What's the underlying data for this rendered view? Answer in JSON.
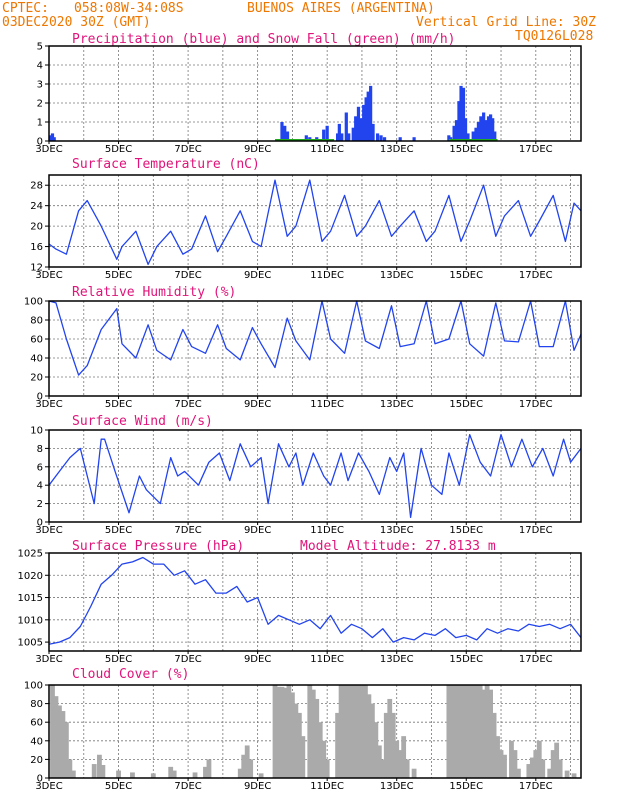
{
  "header": {
    "source": "CPTEC:",
    "coords": "058:08W-34:08S",
    "place": "BUENOS AIRES (ARGENTINA)",
    "run": "03DEC2020 30Z (GMT)",
    "grid_note": "Vertical Grid Line: 30Z",
    "code": "TQ0126L028"
  },
  "colors": {
    "header": "#ee7700",
    "title": "#e0147a",
    "line": "#2244ee",
    "snow": "#22aa22",
    "cloud": "#aaaaaa"
  },
  "chart_data": [
    {
      "type": "bar",
      "title": "Precipitation (blue) and Snow Fall (green) (mm/h)",
      "ylim": [
        0,
        5
      ],
      "yticks": [
        "0",
        "1",
        "2",
        "3",
        "4",
        "5"
      ],
      "xticks": [
        "3DEC",
        "5DEC",
        "7DEC",
        "9DEC",
        "11DEC",
        "13DEC",
        "15DEC",
        "17DEC"
      ],
      "xlim": [
        0,
        15.3
      ],
      "grid": true,
      "series": [
        {
          "name": "precipitation",
          "points": [
            [
              0.05,
              0.3
            ],
            [
              0.1,
              0.4
            ],
            [
              0.15,
              0.2
            ],
            [
              6.7,
              1.0
            ],
            [
              6.78,
              0.8
            ],
            [
              6.86,
              0.5
            ],
            [
              7.4,
              0.3
            ],
            [
              7.5,
              0.2
            ],
            [
              7.7,
              0.2
            ],
            [
              7.9,
              0.6
            ],
            [
              8.0,
              0.8
            ],
            [
              8.3,
              0.4
            ],
            [
              8.35,
              0.9
            ],
            [
              8.42,
              0.4
            ],
            [
              8.55,
              1.5
            ],
            [
              8.62,
              0.4
            ],
            [
              8.75,
              0.7
            ],
            [
              8.82,
              1.3
            ],
            [
              8.9,
              1.8
            ],
            [
              8.97,
              1.2
            ],
            [
              9.05,
              1.9
            ],
            [
              9.12,
              2.3
            ],
            [
              9.18,
              2.6
            ],
            [
              9.25,
              2.9
            ],
            [
              9.32,
              0.9
            ],
            [
              9.45,
              0.4
            ],
            [
              9.55,
              0.3
            ],
            [
              9.65,
              0.2
            ],
            [
              10.1,
              0.2
            ],
            [
              10.5,
              0.2
            ],
            [
              11.5,
              0.3
            ],
            [
              11.55,
              0.2
            ],
            [
              11.65,
              0.8
            ],
            [
              11.72,
              1.1
            ],
            [
              11.79,
              2.1
            ],
            [
              11.85,
              2.9
            ],
            [
              11.92,
              2.8
            ],
            [
              11.98,
              1.2
            ],
            [
              12.05,
              0.4
            ],
            [
              12.2,
              0.5
            ],
            [
              12.28,
              0.7
            ],
            [
              12.35,
              1.0
            ],
            [
              12.42,
              1.3
            ],
            [
              12.5,
              1.5
            ],
            [
              12.58,
              1.1
            ],
            [
              12.64,
              1.3
            ],
            [
              12.7,
              1.4
            ],
            [
              12.76,
              1.2
            ],
            [
              12.82,
              0.5
            ]
          ]
        },
        {
          "name": "snow fall",
          "points": []
        }
      ]
    },
    {
      "type": "line",
      "title": "Surface Temperature (nC)",
      "ylim": [
        12,
        30
      ],
      "yticks": [
        "12",
        "16",
        "20",
        "24",
        "28"
      ],
      "xticks": [
        "3DEC",
        "5DEC",
        "7DEC",
        "9DEC",
        "11DEC",
        "13DEC",
        "15DEC",
        "17DEC"
      ],
      "xlim": [
        0,
        15.3
      ],
      "grid": true,
      "x": [
        0,
        0.2,
        0.5,
        0.85,
        1.1,
        1.5,
        1.95,
        2.1,
        2.5,
        2.85,
        3.1,
        3.5,
        3.85,
        4.1,
        4.5,
        4.85,
        5.1,
        5.5,
        5.85,
        6.1,
        6.5,
        6.85,
        7.1,
        7.5,
        7.85,
        8.1,
        8.5,
        8.85,
        9.1,
        9.5,
        9.85,
        10.1,
        10.5,
        10.85,
        11.1,
        11.5,
        11.85,
        12.1,
        12.5,
        12.85,
        13.1,
        13.5,
        13.85,
        14.1,
        14.5,
        14.85,
        15.1,
        15.3
      ],
      "y": [
        16.5,
        15.5,
        14.5,
        23,
        25,
        20,
        13.5,
        16,
        19,
        12.5,
        16,
        19,
        14.5,
        15.5,
        22,
        15,
        18,
        23,
        17,
        16,
        29,
        18,
        20,
        29,
        17,
        19,
        26,
        18,
        20,
        25,
        18,
        20,
        23,
        17,
        19,
        26,
        17,
        21,
        28,
        18,
        22,
        25,
        18,
        21,
        26,
        17,
        24.5,
        23
      ]
    },
    {
      "type": "line",
      "title": "Relative Humidity (%)",
      "ylim": [
        0,
        100
      ],
      "yticks": [
        "0",
        "20",
        "40",
        "60",
        "80",
        "100"
      ],
      "xticks": [
        "3DEC",
        "5DEC",
        "7DEC",
        "9DEC",
        "11DEC",
        "13DEC",
        "15DEC",
        "17DEC"
      ],
      "xlim": [
        0,
        15.3
      ],
      "grid": true,
      "x": [
        0,
        0.2,
        0.5,
        0.85,
        1.1,
        1.5,
        1.95,
        2.1,
        2.5,
        2.85,
        3.1,
        3.5,
        3.85,
        4.1,
        4.5,
        4.85,
        5.1,
        5.5,
        5.85,
        6.1,
        6.5,
        6.85,
        7.1,
        7.5,
        7.85,
        8.1,
        8.5,
        8.85,
        9.1,
        9.5,
        9.85,
        10.1,
        10.5,
        10.85,
        11.1,
        11.5,
        11.85,
        12.1,
        12.5,
        12.85,
        13.1,
        13.5,
        13.85,
        14.1,
        14.5,
        14.85,
        15.1,
        15.3
      ],
      "y": [
        100,
        98,
        60,
        22,
        32,
        70,
        92,
        55,
        40,
        75,
        48,
        38,
        70,
        52,
        45,
        75,
        50,
        38,
        72,
        55,
        30,
        82,
        58,
        38,
        100,
        60,
        45,
        100,
        58,
        50,
        95,
        52,
        55,
        100,
        55,
        60,
        100,
        55,
        42,
        98,
        58,
        57,
        100,
        52,
        52,
        100,
        48,
        65
      ]
    },
    {
      "type": "line",
      "title": "Surface Wind (m/s)",
      "ylim": [
        0,
        10
      ],
      "yticks": [
        "0",
        "2",
        "4",
        "6",
        "8",
        "10"
      ],
      "xticks": [
        "3DEC",
        "5DEC",
        "7DEC",
        "9DEC",
        "11DEC",
        "13DEC",
        "15DEC",
        "17DEC"
      ],
      "xlim": [
        0,
        15.3
      ],
      "grid": true,
      "x": [
        0,
        0.3,
        0.6,
        0.9,
        1.3,
        1.5,
        1.6,
        1.9,
        2.3,
        2.6,
        2.8,
        3.2,
        3.5,
        3.7,
        3.9,
        4.3,
        4.6,
        4.9,
        5.2,
        5.5,
        5.8,
        6.1,
        6.3,
        6.6,
        6.9,
        7.1,
        7.3,
        7.6,
        7.9,
        8.1,
        8.4,
        8.6,
        8.9,
        9.2,
        9.5,
        9.8,
        10.0,
        10.2,
        10.4,
        10.7,
        11.0,
        11.3,
        11.5,
        11.8,
        12.1,
        12.4,
        12.7,
        13.0,
        13.3,
        13.6,
        13.9,
        14.2,
        14.5,
        14.8,
        15.0,
        15.3
      ],
      "y": [
        4,
        5.5,
        7,
        8,
        2,
        9,
        9,
        5.5,
        1,
        5,
        3.5,
        2,
        7,
        5,
        5.5,
        4,
        6.5,
        7.5,
        4.5,
        8.5,
        6,
        7,
        2,
        8.5,
        6,
        7.5,
        4,
        7.5,
        5,
        4,
        7.5,
        4.5,
        7.5,
        5.5,
        3,
        7,
        5.5,
        7.5,
        0.5,
        8,
        4,
        3,
        7.5,
        4,
        9.5,
        6.5,
        5,
        9.5,
        6,
        9,
        6,
        8,
        5,
        9,
        6.5,
        8
      ]
    },
    {
      "type": "line",
      "title": "Surface Pressure (hPa)",
      "ylim": [
        1003,
        1025
      ],
      "yticks": [
        "1005",
        "1010",
        "1015",
        "1020",
        "1025"
      ],
      "xticks": [
        "3DEC",
        "5DEC",
        "7DEC",
        "9DEC",
        "11DEC",
        "13DEC",
        "15DEC",
        "17DEC"
      ],
      "xlim": [
        0,
        15.3
      ],
      "grid": true,
      "annotation": "Model Altitude: 27.8133 m",
      "x": [
        0,
        0.3,
        0.6,
        0.9,
        1.2,
        1.5,
        1.8,
        2.1,
        2.4,
        2.7,
        3.0,
        3.3,
        3.6,
        3.9,
        4.2,
        4.5,
        4.8,
        5.1,
        5.4,
        5.7,
        6.0,
        6.3,
        6.6,
        6.9,
        7.2,
        7.5,
        7.8,
        8.1,
        8.4,
        8.7,
        9.0,
        9.3,
        9.6,
        9.9,
        10.2,
        10.5,
        10.8,
        11.1,
        11.4,
        11.7,
        12.0,
        12.3,
        12.6,
        12.9,
        13.2,
        13.5,
        13.8,
        14.1,
        14.4,
        14.7,
        15.0,
        15.3
      ],
      "y": [
        1004.5,
        1005,
        1006,
        1008.5,
        1013,
        1018,
        1020,
        1022.5,
        1023,
        1024,
        1022.5,
        1022.5,
        1020,
        1021,
        1018,
        1019,
        1016,
        1016,
        1017.5,
        1014,
        1015,
        1009,
        1011,
        1010,
        1009,
        1010,
        1008,
        1011,
        1007,
        1009,
        1008,
        1006,
        1008,
        1005,
        1006,
        1005.5,
        1007,
        1006.5,
        1008,
        1006,
        1006.5,
        1005.5,
        1008,
        1007,
        1008,
        1007.5,
        1009,
        1008.5,
        1009,
        1008,
        1009,
        1006
      ]
    },
    {
      "type": "bar",
      "title": "Cloud Cover (%)",
      "ylim": [
        0,
        100
      ],
      "yticks": [
        "0",
        "20",
        "40",
        "60",
        "80",
        "100"
      ],
      "xticks": [
        "3DEC",
        "5DEC",
        "7DEC",
        "9DEC",
        "11DEC",
        "13DEC",
        "15DEC",
        "17DEC"
      ],
      "xlim": [
        0,
        15.3
      ],
      "grid": true,
      "points": [
        [
          0.1,
          100
        ],
        [
          0.2,
          88
        ],
        [
          0.3,
          78
        ],
        [
          0.4,
          72
        ],
        [
          0.5,
          60
        ],
        [
          0.6,
          20
        ],
        [
          0.7,
          8
        ],
        [
          1.3,
          15
        ],
        [
          1.45,
          25
        ],
        [
          1.55,
          14
        ],
        [
          2.0,
          8
        ],
        [
          2.4,
          6
        ],
        [
          3.0,
          5
        ],
        [
          3.5,
          12
        ],
        [
          3.6,
          8
        ],
        [
          4.2,
          6
        ],
        [
          4.5,
          12
        ],
        [
          4.6,
          20
        ],
        [
          5.5,
          10
        ],
        [
          5.6,
          25
        ],
        [
          5.7,
          35
        ],
        [
          5.8,
          20
        ],
        [
          6.1,
          5
        ],
        [
          6.5,
          100
        ],
        [
          6.6,
          98
        ],
        [
          6.7,
          98
        ],
        [
          6.8,
          97
        ],
        [
          6.9,
          100
        ],
        [
          7.0,
          92
        ],
        [
          7.1,
          80
        ],
        [
          7.2,
          70
        ],
        [
          7.3,
          45
        ],
        [
          7.5,
          100
        ],
        [
          7.6,
          95
        ],
        [
          7.7,
          85
        ],
        [
          7.8,
          60
        ],
        [
          7.9,
          40
        ],
        [
          8.0,
          20
        ],
        [
          8.3,
          70
        ],
        [
          8.4,
          100
        ],
        [
          8.5,
          100
        ],
        [
          8.6,
          100
        ],
        [
          8.7,
          100
        ],
        [
          8.8,
          100
        ],
        [
          8.9,
          100
        ],
        [
          9.0,
          100
        ],
        [
          9.1,
          100
        ],
        [
          9.2,
          90
        ],
        [
          9.3,
          80
        ],
        [
          9.4,
          60
        ],
        [
          9.5,
          35
        ],
        [
          9.6,
          20
        ],
        [
          9.7,
          70
        ],
        [
          9.8,
          85
        ],
        [
          9.9,
          70
        ],
        [
          10.0,
          40
        ],
        [
          10.1,
          30
        ],
        [
          10.2,
          45
        ],
        [
          10.3,
          20
        ],
        [
          10.5,
          10
        ],
        [
          11.5,
          100
        ],
        [
          11.6,
          100
        ],
        [
          11.7,
          100
        ],
        [
          11.8,
          100
        ],
        [
          11.9,
          100
        ],
        [
          12.0,
          100
        ],
        [
          12.1,
          100
        ],
        [
          12.2,
          100
        ],
        [
          12.3,
          100
        ],
        [
          12.4,
          100
        ],
        [
          12.5,
          95
        ],
        [
          12.6,
          100
        ],
        [
          12.7,
          95
        ],
        [
          12.8,
          70
        ],
        [
          12.9,
          45
        ],
        [
          13.0,
          30
        ],
        [
          13.1,
          25
        ],
        [
          13.3,
          40
        ],
        [
          13.4,
          30
        ],
        [
          13.5,
          10
        ],
        [
          13.8,
          15
        ],
        [
          13.9,
          22
        ],
        [
          14.0,
          30
        ],
        [
          14.1,
          40
        ],
        [
          14.2,
          20
        ],
        [
          14.4,
          10
        ],
        [
          14.5,
          30
        ],
        [
          14.6,
          38
        ],
        [
          14.7,
          20
        ],
        [
          14.9,
          8
        ],
        [
          15.1,
          5
        ]
      ]
    }
  ]
}
